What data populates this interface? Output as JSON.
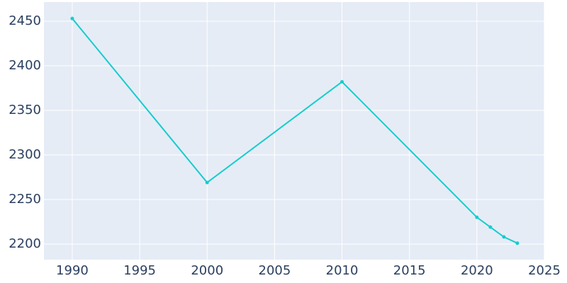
{
  "chart_data": {
    "type": "line",
    "x": [
      1990,
      2000,
      2010,
      2020,
      2021,
      2022,
      2023
    ],
    "series": [
      {
        "color": "#17cccc",
        "values": [
          2453,
          2269,
          2382,
          2230,
          2219,
          2208,
          2201
        ]
      }
    ],
    "xlim": [
      1987.9,
      2025
    ],
    "xticks": [
      1990,
      1995,
      2000,
      2005,
      2010,
      2015,
      2020,
      2025
    ],
    "ylim": [
      2182.5,
      2471.4
    ],
    "yticks": [
      2200,
      2250,
      2300,
      2350,
      2400,
      2450
    ],
    "grid": true
  }
}
